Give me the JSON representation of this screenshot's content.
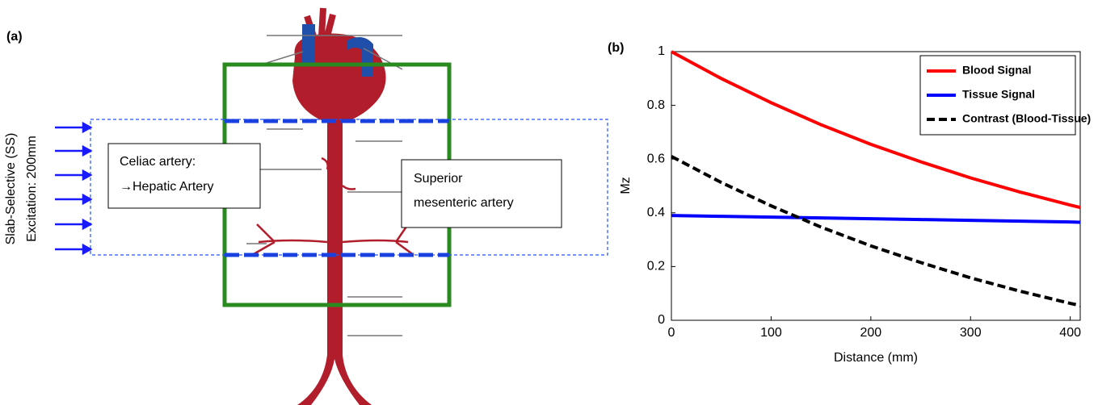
{
  "panel_a": {
    "label": "(a)",
    "slab_label": [
      "Slab-Selective (SS)",
      "Excitation: 200mm"
    ],
    "celiac_box": [
      "Celiac artery:",
      "→Hepatic Artery"
    ],
    "sma_box": [
      "Superior",
      "mesenteric artery"
    ]
  },
  "chart_data": {
    "type": "line",
    "panel_label": "(b)",
    "xlabel": "Distance (mm)",
    "ylabel": "Mz",
    "x": [
      0,
      50,
      100,
      150,
      200,
      250,
      300,
      350,
      400,
      410
    ],
    "series": [
      {
        "name": "Blood Signal",
        "color": "#ff0000",
        "line_style": "solid",
        "values": [
          1,
          0.9,
          0.81,
          0.728,
          0.655,
          0.59,
          0.53,
          0.477,
          0.429,
          0.42
        ]
      },
      {
        "name": "Tissue Signal",
        "color": "#0000ff",
        "line_style": "solid",
        "values": [
          0.39,
          0.387,
          0.384,
          0.381,
          0.378,
          0.375,
          0.372,
          0.369,
          0.366,
          0.365
        ]
      },
      {
        "name": "Contrast (Blood-Tissue)",
        "color": "#000000",
        "line_style": "dashed",
        "values": [
          0.61,
          0.513,
          0.426,
          0.347,
          0.277,
          0.215,
          0.158,
          0.108,
          0.063,
          0.055
        ]
      }
    ],
    "xlim": [
      0,
      410
    ],
    "xticks": [
      0,
      100,
      200,
      300,
      400
    ],
    "ylim": [
      0,
      1
    ],
    "yticks": [
      0,
      0.2,
      0.4,
      0.6,
      0.8,
      1
    ],
    "legend": "upper right",
    "grid": false
  }
}
